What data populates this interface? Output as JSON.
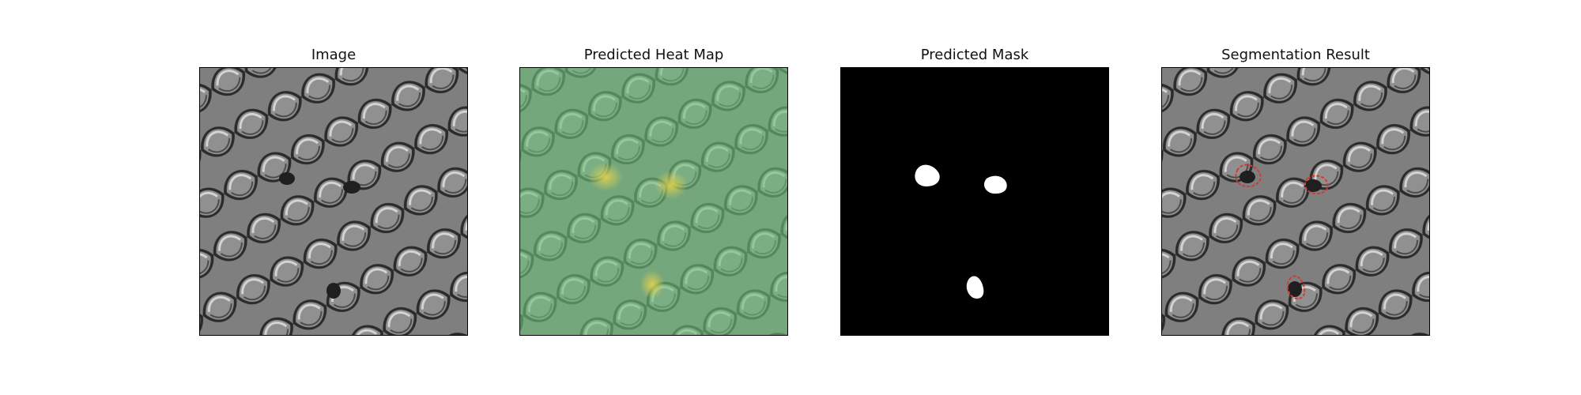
{
  "figure": {
    "panels": [
      {
        "title": "Image"
      },
      {
        "title": "Predicted Heat Map"
      },
      {
        "title": "Predicted Mask"
      },
      {
        "title": "Segmentation Result"
      }
    ]
  },
  "colors": {
    "background": "#ffffff",
    "texture_base": "#7e7e7e",
    "texture_dark": "#1f1f1f",
    "texture_light": "#d7d7d7",
    "heatmap_overlay": "#6fc07d",
    "heatmap_hotspot": "#e2d24c",
    "mask_background": "#000000",
    "mask_blob": "#ffffff",
    "contour": "#d23b35"
  }
}
